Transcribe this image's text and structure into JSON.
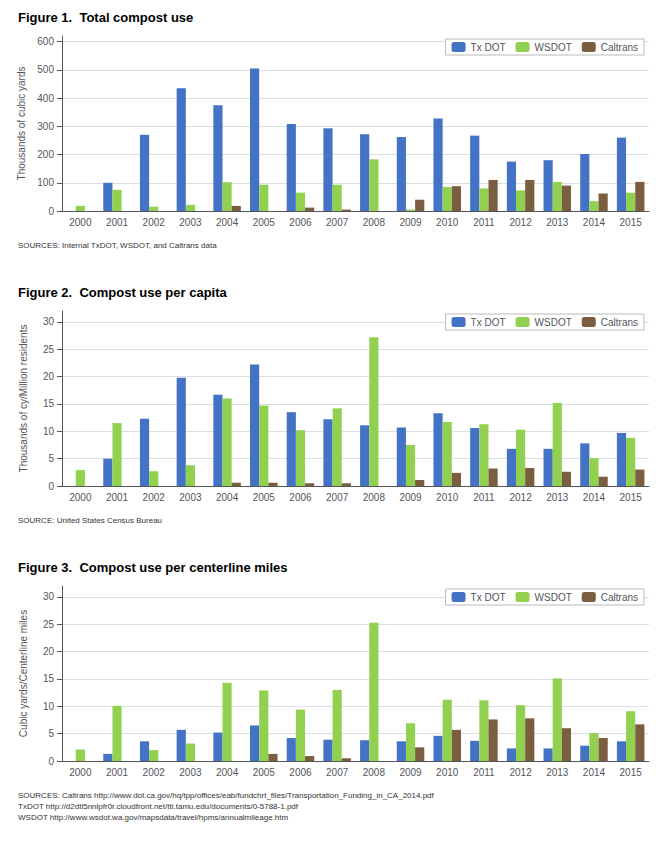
{
  "chart_data": [
    {
      "type": "bar",
      "title": "Figure 1.  Total compost use",
      "ylabel": "Thousands of cubic yards",
      "categories": [
        "2000",
        "2001",
        "2002",
        "2003",
        "2004",
        "2005",
        "2006",
        "2007",
        "2008",
        "2009",
        "2010",
        "2011",
        "2012",
        "2013",
        "2014",
        "2015"
      ],
      "series": [
        {
          "name": "Tx DOT",
          "color": "#4472C4",
          "values": [
            0,
            100,
            270,
            435,
            375,
            505,
            308,
            293,
            272,
            262,
            328,
            267,
            175,
            180,
            202,
            260
          ]
        },
        {
          "name": "WSDOT",
          "color": "#92D050",
          "values": [
            18,
            75,
            15,
            22,
            102,
            93,
            65,
            93,
            183,
            5,
            85,
            80,
            73,
            103,
            35,
            65
          ]
        },
        {
          "name": "Caltrans",
          "color": "#7B5E3F",
          "values": [
            0,
            0,
            0,
            0,
            18,
            0,
            12,
            5,
            0,
            40,
            88,
            110,
            110,
            90,
            62,
            103
          ]
        }
      ],
      "ylim": [
        0,
        620
      ],
      "yticks": [
        0,
        100,
        200,
        300,
        400,
        500,
        600
      ],
      "grid": true,
      "legend": "upper right",
      "annotations": [
        "SOURCES: Internal TxDOT, WSDOT, and Caltrans data"
      ]
    },
    {
      "type": "bar",
      "title": "Figure 2.  Compost use per capita",
      "ylabel": "Thousands of cy/Million residents",
      "categories": [
        "2000",
        "2001",
        "2002",
        "2003",
        "2004",
        "2005",
        "2006",
        "2007",
        "2008",
        "2009",
        "2010",
        "2011",
        "2012",
        "2013",
        "2014",
        "2015"
      ],
      "series": [
        {
          "name": "Tx DOT",
          "color": "#4472C4",
          "values": [
            0,
            5.0,
            12.3,
            19.8,
            16.7,
            22.2,
            13.5,
            12.2,
            11.1,
            10.7,
            13.3,
            10.6,
            6.8,
            6.8,
            7.8,
            9.7
          ]
        },
        {
          "name": "WSDOT",
          "color": "#92D050",
          "values": [
            2.9,
            11.5,
            2.7,
            3.8,
            16.0,
            14.7,
            10.2,
            14.2,
            27.2,
            7.5,
            11.7,
            11.3,
            10.3,
            15.2,
            5.1,
            8.8
          ]
        },
        {
          "name": "Caltrans",
          "color": "#7B5E3F",
          "values": [
            0,
            0,
            0,
            0,
            0.6,
            0.6,
            0.5,
            0.5,
            0,
            1.1,
            2.4,
            3.2,
            3.3,
            2.6,
            1.7,
            3.0
          ]
        }
      ],
      "ylim": [
        0,
        32
      ],
      "yticks": [
        0,
        5,
        10,
        15,
        20,
        25,
        30
      ],
      "grid": true,
      "legend": "upper right",
      "annotations": [
        "SOURCE: United States Census Bureau"
      ]
    },
    {
      "type": "bar",
      "title": "Figure 3.  Compost use per centerline miles",
      "ylabel": "Cubic yards/Centerline miles",
      "categories": [
        "2000",
        "2001",
        "2002",
        "2003",
        "2004",
        "2005",
        "2006",
        "2007",
        "2008",
        "2009",
        "2010",
        "2011",
        "2012",
        "2013",
        "2014",
        "2015"
      ],
      "series": [
        {
          "name": "Tx DOT",
          "color": "#4472C4",
          "values": [
            0,
            1.3,
            3.6,
            5.7,
            5.2,
            6.5,
            4.2,
            3.9,
            3.8,
            3.6,
            4.6,
            3.7,
            2.3,
            2.3,
            2.8,
            3.6
          ]
        },
        {
          "name": "WSDOT",
          "color": "#92D050",
          "values": [
            2.1,
            10.1,
            2.0,
            3.2,
            14.3,
            12.9,
            9.4,
            13.0,
            25.3,
            6.9,
            11.2,
            11.1,
            10.2,
            15.1,
            5.1,
            9.1
          ]
        },
        {
          "name": "Caltrans",
          "color": "#7B5E3F",
          "values": [
            0,
            0,
            0,
            0,
            0,
            1.3,
            0.9,
            0.5,
            0,
            2.5,
            5.7,
            7.6,
            7.8,
            6.0,
            4.2,
            6.7
          ]
        }
      ],
      "ylim": [
        0,
        32
      ],
      "yticks": [
        0,
        5,
        10,
        15,
        20,
        25,
        30
      ],
      "grid": true,
      "legend": "upper right",
      "annotations": [
        "SOURCES: Caltrans http://www.dot.ca.gov/hq/tpp/offices/eab/fundchrt_files/Transportation_Funding_in_CA_2014.pdf\nTxDOT http://d2dtl5nnlpfr0r.cloudfront.net/tti.tamu.edu/documents/0-5788-1.pdf\nWSDOT http://www.wsdot.wa.gov/mapsdata/travel/hpms/annualmileage.htm"
      ]
    }
  ]
}
